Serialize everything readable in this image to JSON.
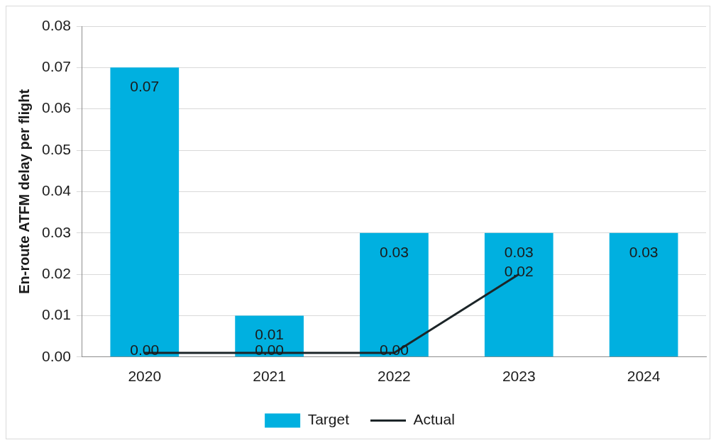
{
  "chart_data": {
    "type": "bar",
    "ylabel": "En-route ATFM delay per flight",
    "categories": [
      "2020",
      "2021",
      "2022",
      "2023",
      "2024"
    ],
    "series": [
      {
        "name": "Target",
        "color": "#00b0e0",
        "values": [
          0.07,
          0.01,
          0.03,
          0.03,
          0.03
        ],
        "value_labels": [
          "0.07",
          "0.01",
          "0.03",
          "0.03",
          "0.03"
        ]
      },
      {
        "name": "Actual",
        "type": "line",
        "color": "#1c2528",
        "values": [
          0.001,
          0.001,
          0.001,
          0.02,
          null
        ],
        "value_labels": [
          "0.00",
          "0.00",
          "0.00",
          "0.02",
          null
        ]
      }
    ],
    "ylim": [
      0,
      0.08
    ],
    "yticks": [
      {
        "value": 0,
        "label": "0.00"
      },
      {
        "value": 0.01,
        "label": "0.01"
      },
      {
        "value": 0.02,
        "label": "0.02"
      },
      {
        "value": 0.03,
        "label": "0.03"
      },
      {
        "value": 0.04,
        "label": "0.04"
      },
      {
        "value": 0.05,
        "label": "0.05"
      },
      {
        "value": 0.06,
        "label": "0.06"
      },
      {
        "value": 0.07,
        "label": "0.07"
      },
      {
        "value": 0.08,
        "label": "0.08"
      }
    ],
    "grid": "y",
    "legend": "bottom",
    "marker": "none",
    "line_style": "solid"
  }
}
